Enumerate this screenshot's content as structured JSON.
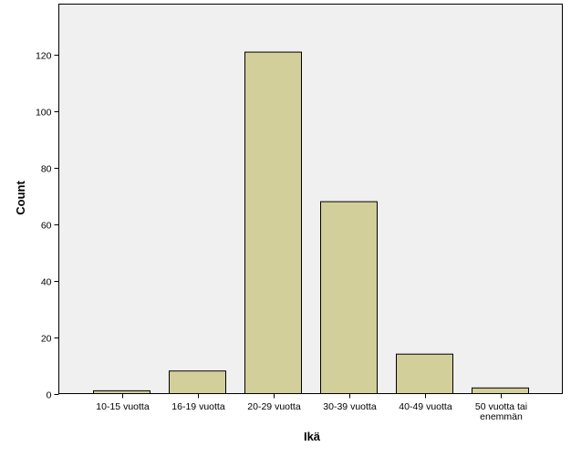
{
  "chart_data": {
    "type": "bar",
    "title": "",
    "xlabel": "Ikä",
    "ylabel": "Count",
    "categories": [
      [
        "10-15 vuotta"
      ],
      [
        "16-19 vuotta"
      ],
      [
        "20-29 vuotta"
      ],
      [
        "30-39 vuotta"
      ],
      [
        "40-49 vuotta"
      ],
      [
        "50 vuotta tai",
        "enemmän"
      ]
    ],
    "values": [
      1,
      8,
      121,
      68,
      14,
      2
    ],
    "ylim": [
      0,
      138
    ],
    "yticks": [
      0,
      20,
      40,
      60,
      80,
      100,
      120
    ],
    "grid": false,
    "legend": "none",
    "colors": {
      "bar_fill": "#d3cf9b",
      "bar_stroke": "#000000",
      "plot_background": "#f0f0f0",
      "page_background": "#ffffff",
      "axis": "#000000"
    }
  }
}
